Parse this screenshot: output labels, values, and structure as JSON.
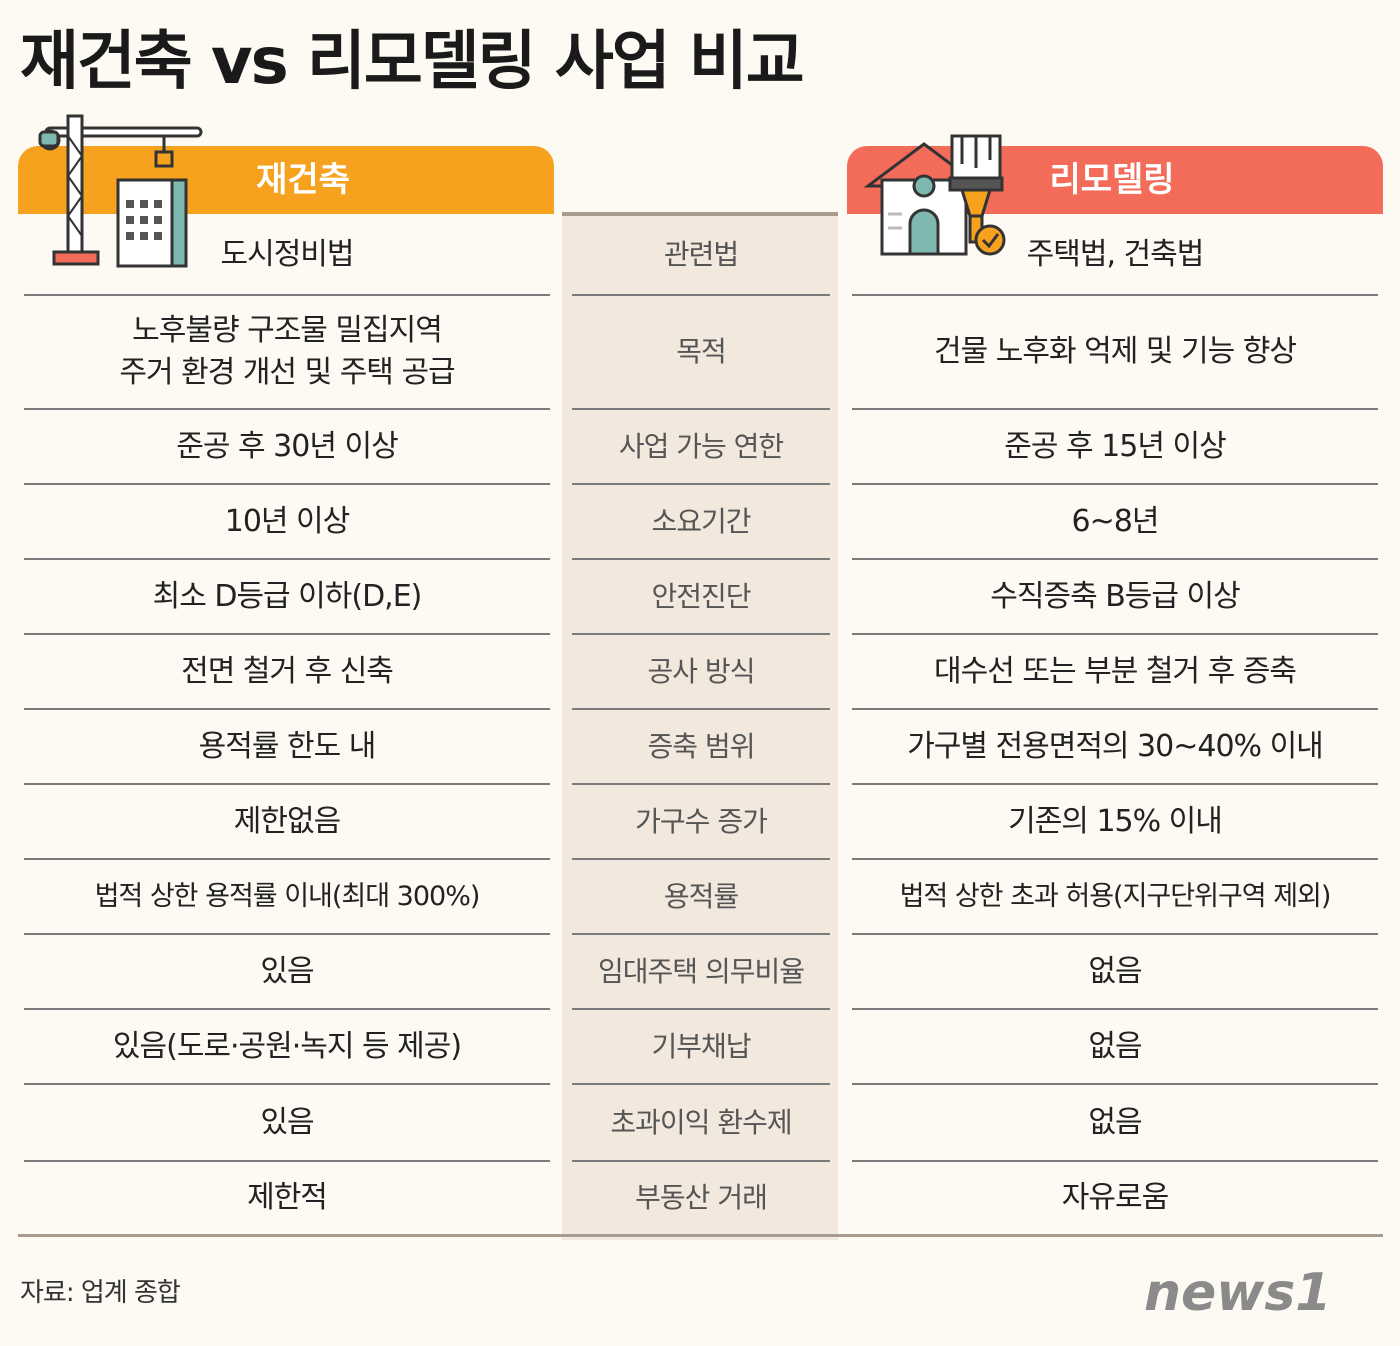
{
  "title": "재건축 vs 리모델링 사업 비교",
  "headers": {
    "left": "재건축",
    "right": "리모델링"
  },
  "rows": [
    {
      "left": "도시정비법",
      "mid": "관련법",
      "right": "주택법, 건축법"
    },
    {
      "left": "노후불량 구조물 밀집지역\n주거 환경 개선 및 주택 공급",
      "mid": "목적",
      "right": "건물 노후화 억제 및 기능 향상"
    },
    {
      "left": "준공 후 30년 이상",
      "mid": "사업 가능 연한",
      "right": "준공 후 15년 이상"
    },
    {
      "left": "10년 이상",
      "mid": "소요기간",
      "right": "6~8년"
    },
    {
      "left": "최소 D등급 이하(D,E)",
      "mid": "안전진단",
      "right": "수직증축 B등급 이상"
    },
    {
      "left": "전면 철거 후 신축",
      "mid": "공사 방식",
      "right": "대수선 또는 부분 철거 후 증축"
    },
    {
      "left": "용적률 한도 내",
      "mid": "증축 범위",
      "right": "가구별 전용면적의 30~40% 이내"
    },
    {
      "left": "제한없음",
      "mid": "가구수 증가",
      "right": "기존의 15% 이내"
    },
    {
      "left": "법적 상한 용적률 이내(최대 300%)",
      "mid": "용적률",
      "right": "법적 상한 초과 허용(지구단위구역 제외)"
    },
    {
      "left": "있음",
      "mid": "임대주택 의무비율",
      "right": "없음"
    },
    {
      "left": "있음(도로·공원·녹지 등 제공)",
      "mid": "기부채납",
      "right": "없음"
    },
    {
      "left": "있음",
      "mid": "초과이익 환수제",
      "right": "없음"
    },
    {
      "left": "제한적",
      "mid": "부동산 거래",
      "right": "자유로움"
    }
  ],
  "source": "자료: 업계 종합",
  "logo": "news1",
  "colors": {
    "rebuild_accent": "#f6a21e",
    "remodel_accent": "#f36c59",
    "middle_column": "#f2e8de",
    "background": "#fdfaf3"
  },
  "icons": {
    "left": "crane-building-icon",
    "right": "house-paintbrush-icon"
  }
}
